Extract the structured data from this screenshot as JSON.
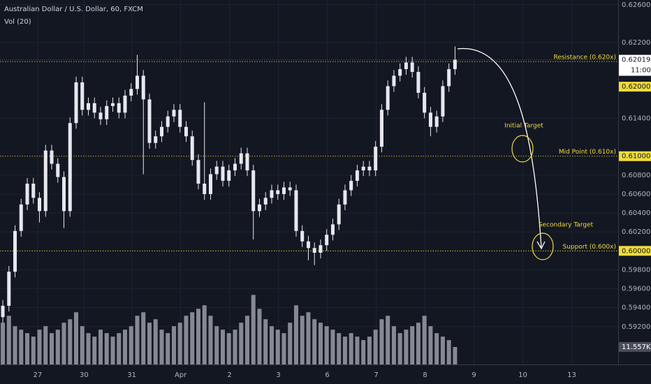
{
  "chart_data": {
    "type": "candlestick",
    "title": "Australian Dollar / U.S. Dollar, 60, FXCM",
    "subtitle": "Vol (20)",
    "xlim": [
      -0.46,
      100.7
    ],
    "ylim": [
      0.588,
      0.6265
    ],
    "yticks": [
      {
        "value": 0.626,
        "label": "0.62600"
      },
      {
        "value": 0.622,
        "label": "0.62200"
      },
      {
        "value": 0.614,
        "label": "0.61400"
      },
      {
        "value": 0.608,
        "label": "0.60800"
      },
      {
        "value": 0.606,
        "label": "0.60600"
      },
      {
        "value": 0.604,
        "label": "0.60400"
      },
      {
        "value": 0.602,
        "label": "0.60200"
      },
      {
        "value": 0.598,
        "label": "0.59800"
      },
      {
        "value": 0.596,
        "label": "0.59600"
      },
      {
        "value": 0.594,
        "label": "0.59400"
      },
      {
        "value": 0.592,
        "label": "0.59200"
      }
    ],
    "xticks": [
      {
        "value": 5.7,
        "label": "27"
      },
      {
        "value": 13.3,
        "label": "30"
      },
      {
        "value": 21.1,
        "label": "31"
      },
      {
        "value": 29.1,
        "label": "Apr"
      },
      {
        "value": 37.1,
        "label": "2"
      },
      {
        "value": 45.1,
        "label": "3"
      },
      {
        "value": 53.1,
        "label": "6"
      },
      {
        "value": 61.1,
        "label": "7"
      },
      {
        "value": 69.1,
        "label": "8"
      },
      {
        "value": 77.1,
        "label": "9"
      },
      {
        "value": 85.1,
        "label": "10"
      },
      {
        "value": 93.1,
        "label": "13"
      }
    ],
    "grid": true,
    "candle_color": "#e6e8ee",
    "open": [
      0.593,
      0.5942,
      0.5978,
      0.6021,
      0.6049,
      0.6071,
      0.6056,
      0.6042,
      0.6106,
      0.6092,
      0.6078,
      0.6042,
      0.6135,
      0.6178,
      0.6149,
      0.6156,
      0.6146,
      0.6139,
      0.6153,
      0.6156,
      0.6146,
      0.6164,
      0.6171,
      0.6185,
      0.616,
      0.6114,
      0.6121,
      0.6131,
      0.6142,
      0.6149,
      0.6131,
      0.6121,
      0.6096,
      0.6071,
      0.606,
      0.6081,
      0.6089,
      0.6074,
      0.6085,
      0.6092,
      0.6103,
      0.6085,
      0.6042,
      0.6049,
      0.6056,
      0.6064,
      0.606,
      0.6067,
      0.6064,
      0.6021,
      0.601,
      0.6003,
      0.5998,
      0.6006,
      0.6017,
      0.6028,
      0.6049,
      0.6064,
      0.6074,
      0.6085,
      0.6089,
      0.6085,
      0.611,
      0.6149,
      0.6174,
      0.6185,
      0.6192,
      0.6199,
      0.6189,
      0.6167,
      0.6146,
      0.6131,
      0.6142,
      0.6174,
      0.6192
    ],
    "high": [
      0.5948,
      0.5984,
      0.6027,
      0.6055,
      0.6077,
      0.6077,
      0.6062,
      0.6112,
      0.6112,
      0.6098,
      0.6084,
      0.6141,
      0.6184,
      0.6184,
      0.6162,
      0.6162,
      0.6152,
      0.6159,
      0.6162,
      0.6162,
      0.617,
      0.6177,
      0.6207,
      0.6191,
      0.6166,
      0.6127,
      0.6137,
      0.6148,
      0.6155,
      0.6155,
      0.6137,
      0.6127,
      0.6102,
      0.6157,
      0.6087,
      0.6095,
      0.6095,
      0.6091,
      0.6098,
      0.6109,
      0.6109,
      0.6091,
      0.6055,
      0.6062,
      0.607,
      0.607,
      0.6073,
      0.6073,
      0.607,
      0.6027,
      0.6016,
      0.6009,
      0.6012,
      0.6023,
      0.6034,
      0.6055,
      0.607,
      0.608,
      0.6091,
      0.6095,
      0.6095,
      0.6116,
      0.6155,
      0.618,
      0.6191,
      0.6198,
      0.6205,
      0.6205,
      0.6195,
      0.6173,
      0.6152,
      0.6148,
      0.618,
      0.6198,
      0.6216
    ],
    "low": [
      0.5924,
      0.5936,
      0.5972,
      0.6015,
      0.6043,
      0.605,
      0.603,
      0.6036,
      0.6086,
      0.6072,
      0.6024,
      0.6036,
      0.6129,
      0.6143,
      0.6143,
      0.614,
      0.6133,
      0.6133,
      0.6147,
      0.614,
      0.614,
      0.6158,
      0.6165,
      0.6081,
      0.6108,
      0.6108,
      0.6115,
      0.6125,
      0.6136,
      0.6125,
      0.6115,
      0.609,
      0.6065,
      0.6054,
      0.6054,
      0.6075,
      0.6068,
      0.6068,
      0.6079,
      0.6086,
      0.6079,
      0.6012,
      0.6036,
      0.6043,
      0.605,
      0.6054,
      0.6054,
      0.6058,
      0.6015,
      0.6004,
      0.599,
      0.5985,
      0.5992,
      0.6,
      0.6011,
      0.6022,
      0.6043,
      0.6058,
      0.6068,
      0.6079,
      0.6079,
      0.6079,
      0.6104,
      0.6143,
      0.6168,
      0.6179,
      0.6186,
      0.6183,
      0.6161,
      0.614,
      0.6121,
      0.6125,
      0.6136,
      0.6168,
      0.6186
    ],
    "close": [
      0.5942,
      0.5978,
      0.6021,
      0.6049,
      0.6071,
      0.6056,
      0.6042,
      0.6106,
      0.6092,
      0.6078,
      0.6042,
      0.6135,
      0.6178,
      0.6149,
      0.6156,
      0.6146,
      0.6139,
      0.6153,
      0.6156,
      0.6146,
      0.6164,
      0.6171,
      0.6185,
      0.616,
      0.6114,
      0.6121,
      0.6131,
      0.6142,
      0.6149,
      0.6131,
      0.6121,
      0.6096,
      0.6071,
      0.606,
      0.6081,
      0.6089,
      0.6074,
      0.6085,
      0.6092,
      0.6103,
      0.6085,
      0.6042,
      0.6049,
      0.6056,
      0.6064,
      0.606,
      0.6067,
      0.6064,
      0.6021,
      0.601,
      0.6003,
      0.5998,
      0.6006,
      0.6017,
      0.6028,
      0.6049,
      0.6064,
      0.6074,
      0.6085,
      0.6089,
      0.6085,
      0.611,
      0.6149,
      0.6174,
      0.6185,
      0.6192,
      0.6199,
      0.6189,
      0.6167,
      0.6146,
      0.6131,
      0.6142,
      0.6174,
      0.6192,
      0.62019
    ],
    "volume": [
      27600,
      32200,
      25300,
      23000,
      20700,
      18400,
      23000,
      25300,
      20700,
      23000,
      27600,
      29900,
      34500,
      25300,
      20700,
      18400,
      23000,
      20700,
      18400,
      20700,
      23000,
      25300,
      32200,
      34500,
      27600,
      29900,
      23000,
      20700,
      25300,
      27600,
      32200,
      34500,
      36800,
      39100,
      32200,
      25300,
      23000,
      20700,
      23000,
      27600,
      32200,
      46000,
      36800,
      29900,
      25300,
      23000,
      20700,
      27600,
      39100,
      32200,
      34500,
      29900,
      27600,
      25300,
      23000,
      20700,
      18400,
      20700,
      18400,
      16100,
      18400,
      23000,
      29900,
      32200,
      25300,
      20700,
      23000,
      25300,
      27600,
      32200,
      25300,
      20700,
      18400,
      16100,
      11557
    ],
    "volume_color": "#868993",
    "volume_ylim": [
      0,
      60000
    ],
    "volume_label": "11.557K",
    "last_price": {
      "value": 0.62019,
      "label": "0.62019",
      "countdown": "11:00"
    },
    "level_color": "#f0dc3c",
    "levels": [
      {
        "value": 0.62,
        "label": "Resistance (0.620x)",
        "price_label": "0.62000"
      },
      {
        "value": 0.61,
        "label": "Mid Point (0.610x)",
        "price_label": "0.61000"
      },
      {
        "value": 0.6,
        "label": "Support (0.600x)",
        "price_label": "0.60000"
      }
    ],
    "annotations": [
      "Initial Target",
      "Secondary Target"
    ]
  }
}
